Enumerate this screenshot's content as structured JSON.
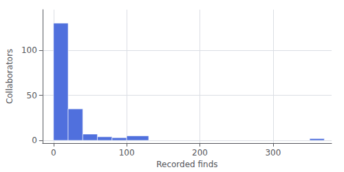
{
  "chart_data": {
    "type": "histogram",
    "xlabel": "Recorded finds",
    "ylabel": "Collaborators",
    "bins": [
      0,
      20,
      40,
      60,
      80,
      100,
      130,
      350,
      370
    ],
    "values": [
      130,
      35,
      7,
      4,
      3,
      5,
      0,
      2
    ],
    "xlim": [
      -15,
      380
    ],
    "xticks": [
      0,
      100,
      200,
      300
    ],
    "ylim": [
      -3,
      145
    ],
    "yticks": [
      0,
      50,
      100
    ],
    "grid": true
  }
}
